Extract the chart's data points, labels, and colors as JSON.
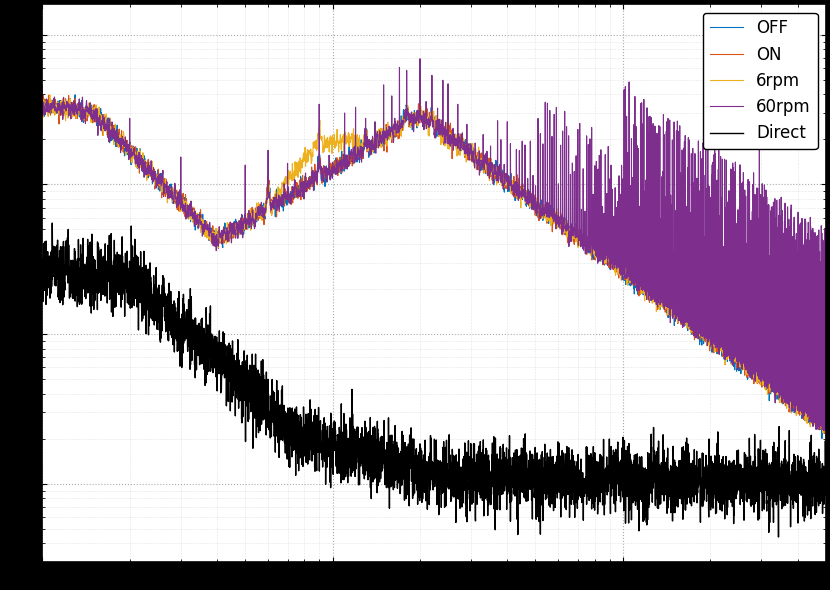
{
  "title": "",
  "xlabel": "",
  "ylabel": "",
  "legend_labels": [
    "OFF",
    "ON",
    "6rpm",
    "60rpm",
    "Direct"
  ],
  "colors": [
    "#0072bd",
    "#d95319",
    "#edb120",
    "#7e2f8e",
    "#000000"
  ],
  "linewidths": [
    0.8,
    0.8,
    0.8,
    0.8,
    1.0
  ],
  "xlim": [
    1,
    500
  ],
  "background_color": "#ffffff",
  "grid_color": "#aaaaaa",
  "legend_loc": "upper right",
  "figsize": [
    8.3,
    5.9
  ],
  "dpi": 100
}
